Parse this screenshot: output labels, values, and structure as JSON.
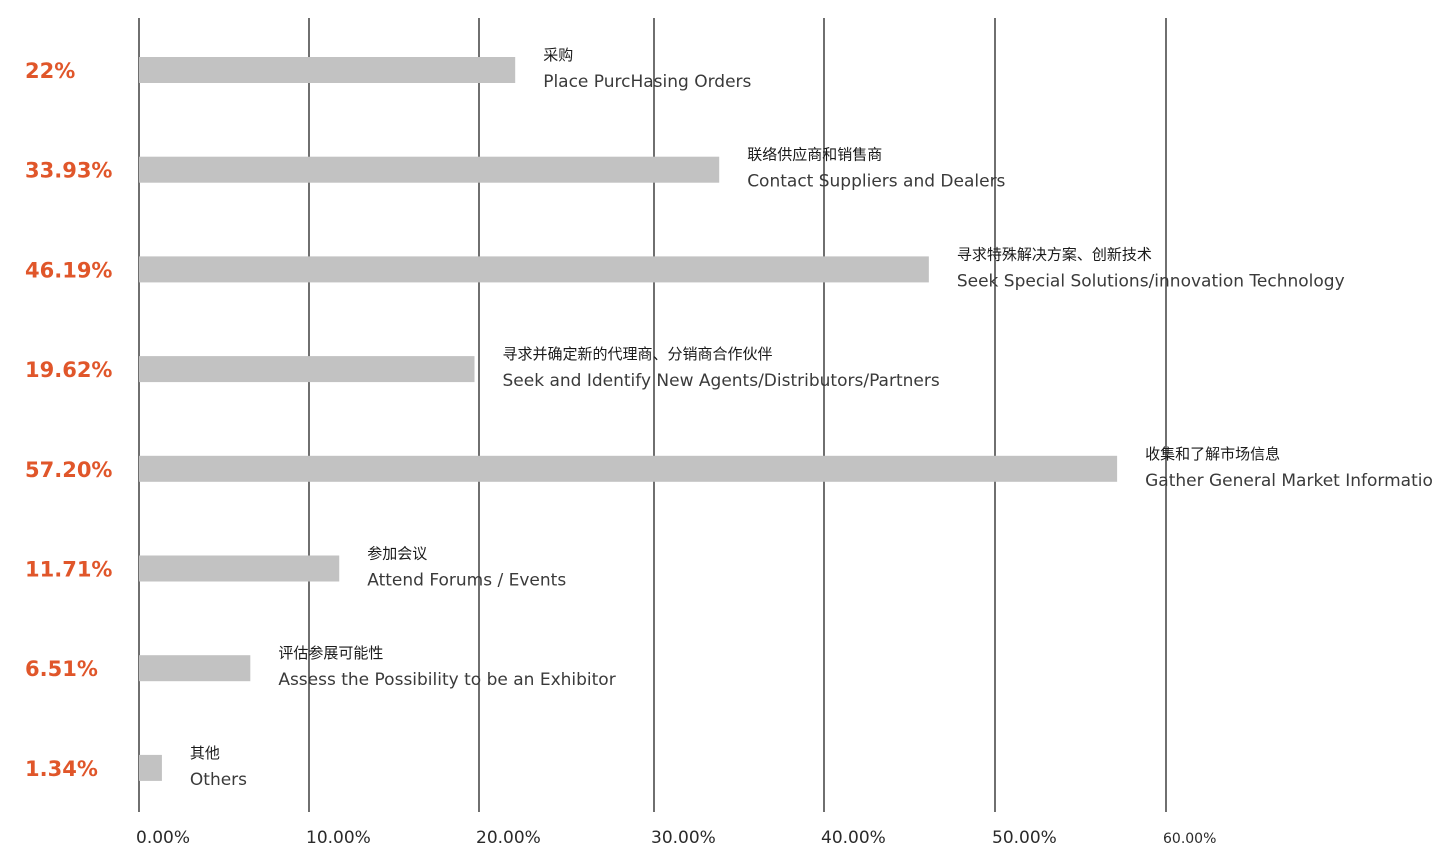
{
  "chart_data": {
    "type": "bar",
    "orientation": "horizontal",
    "categories": [
      {
        "zh": "采购",
        "en": "Place PurcHasing Orders"
      },
      {
        "zh": "联络供应商和销售商",
        "en": "Contact Suppliers and Dealers"
      },
      {
        "zh": "寻求特殊解决方案、创新技术",
        "en": "Seek Special Solutions/innovation Technology"
      },
      {
        "zh": "寻求并确定新的代理商、分销商合作伙伴",
        "en": "Seek and Identify New Agents/Distributors/Partners"
      },
      {
        "zh": "收集和了解市场信息",
        "en": "Gather General Market Information"
      },
      {
        "zh": "参加会议",
        "en": "Attend Forums / Events"
      },
      {
        "zh": "评估参展可能性",
        "en": "Assess the Possibility to be an Exhibitor"
      },
      {
        "zh": "其他",
        "en": "Others"
      }
    ],
    "values": [
      22,
      33.93,
      46.19,
      19.62,
      57.2,
      11.71,
      6.51,
      1.34
    ],
    "value_labels": [
      "22%",
      "33.93%",
      "46.19%",
      "19.62%",
      "57.20%",
      "11.71%",
      "6.51%",
      "1.34%"
    ],
    "x_ticks": [
      "0.00%",
      "10.00%",
      "20.00%",
      "30.00%",
      "40.00%",
      "50.00%",
      "60.00%"
    ],
    "xlim": [
      0,
      60
    ],
    "grid": true,
    "colors": {
      "bar": "#c2c2c2",
      "value_label": "#e0562a",
      "gridline": "#222222"
    }
  }
}
